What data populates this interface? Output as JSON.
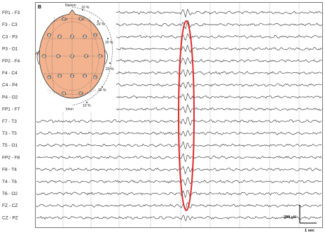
{
  "panel_label": "B",
  "channels": [
    "FP1 - F3",
    "F3 - C3",
    "C3 - P3",
    "P3 - O1",
    "FP2 - F4",
    "F4 - C4",
    "C4 - P4",
    "P4 - O2",
    "FP1 - F7",
    "F7 - T3",
    "T3 - T5",
    "T5 - O1",
    "FP2 - F8",
    "F8 - T4",
    "T4 - T6",
    "T6 - O2",
    "FZ - CZ",
    "CZ - PZ"
  ],
  "head_map": {
    "nasion_label": "Nasion",
    "inion_label": "Inion",
    "left_ear_label": "A1",
    "percent_labels": [
      "10 %",
      "20 %",
      "20 %",
      "20 %",
      "20 %",
      "10 %"
    ],
    "electrodes": [
      "Fp1",
      "Fp2",
      "F7",
      "F3",
      "Fz",
      "F4",
      "F8",
      "T3",
      "C3",
      "Cz",
      "C4",
      "T4",
      "T5",
      "P3",
      "Pz",
      "P4",
      "T6",
      "O1",
      "O2"
    ]
  },
  "scale": {
    "amplitude_label": "200 uV",
    "time_label": "1 sec"
  },
  "colors": {
    "highlight": "#dd2a2a",
    "head_fill": "#f3b38f",
    "trace": "#2b2b2b",
    "grid": "#c8c8c8"
  }
}
